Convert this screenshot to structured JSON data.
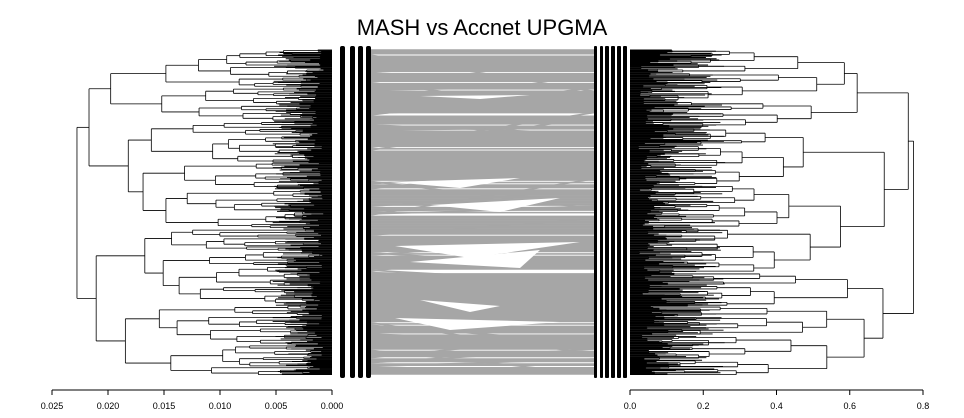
{
  "chart_data": {
    "type": "tanglegram",
    "title": "MASH vs Accnet UPGMA",
    "left_tree": {
      "axis_direction": "reversed",
      "xlim": [
        0.025,
        0.0
      ],
      "ticks": [
        0.025,
        0.02,
        0.015,
        0.01,
        0.005,
        0.0
      ],
      "tick_labels": [
        "0.025",
        "0.020",
        "0.015",
        "0.010",
        "0.005",
        "0.000"
      ]
    },
    "right_tree": {
      "xlim": [
        0.0,
        0.8
      ],
      "ticks": [
        0.0,
        0.2,
        0.4,
        0.6,
        0.8
      ],
      "tick_labels": [
        "0.0",
        "0.2",
        "0.4",
        "0.6",
        "0.8"
      ]
    },
    "connector_color": "#a6a6a6",
    "branch_color": "#000000",
    "grid": false,
    "legend": "none"
  }
}
